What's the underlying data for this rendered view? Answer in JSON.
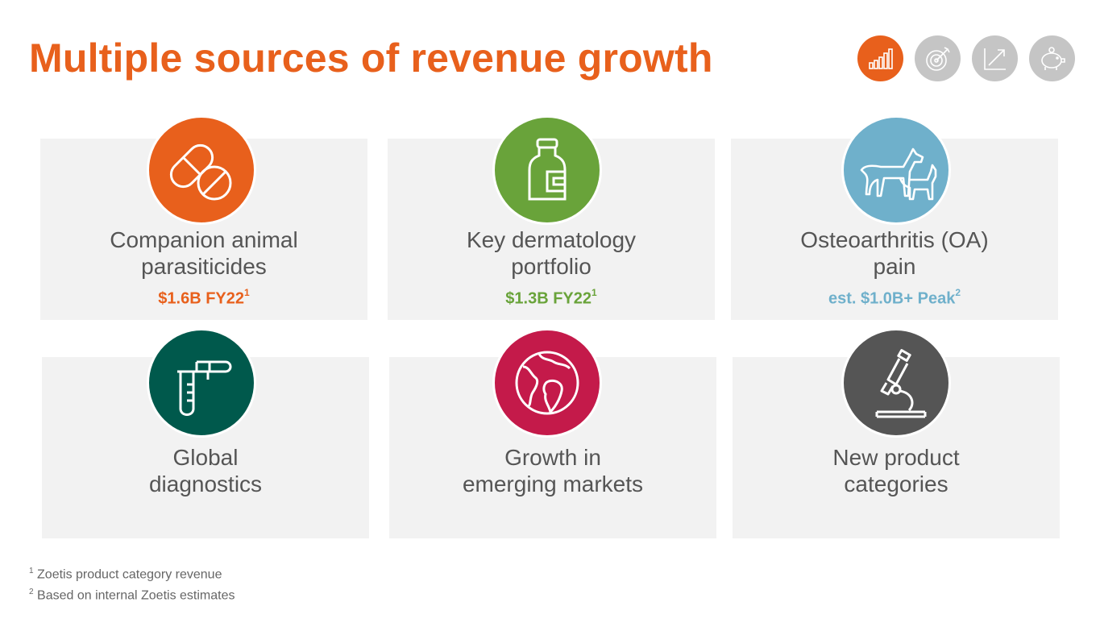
{
  "title": "Multiple sources of revenue growth",
  "nav_icons": [
    "bar-chart-icon",
    "target-icon",
    "trend-up-icon",
    "piggy-bank-icon"
  ],
  "colors": {
    "accent": "#e8601c",
    "green": "#69a33a",
    "blue": "#6fb0cb",
    "teal": "#00594c",
    "crimson": "#c41a4a",
    "charcoal": "#555555"
  },
  "cards": [
    {
      "title_1": "Companion animal",
      "title_2": "parasiticides",
      "detail": "$1.6B FY22",
      "detail_sup": "1",
      "icon": "pills-icon"
    },
    {
      "title_1": "Key dermatology",
      "title_2": "portfolio",
      "detail": "$1.3B FY22",
      "detail_sup": "1",
      "icon": "bottle-icon"
    },
    {
      "title_1": "Osteoarthritis (OA)",
      "title_2": "pain",
      "detail": "est. $1.0B+ Peak",
      "detail_sup": "2",
      "icon": "dog-cat-icon"
    },
    {
      "title_1": "Global",
      "title_2": "diagnostics",
      "icon": "test-tube-icon"
    },
    {
      "title_1": "Growth in",
      "title_2": "emerging markets",
      "icon": "globe-icon"
    },
    {
      "title_1": "New product",
      "title_2": "categories",
      "icon": "microscope-icon"
    }
  ],
  "footnotes": [
    {
      "sup": "1",
      "text": "Zoetis product category revenue"
    },
    {
      "sup": "2",
      "text": "Based on internal Zoetis estimates"
    }
  ]
}
